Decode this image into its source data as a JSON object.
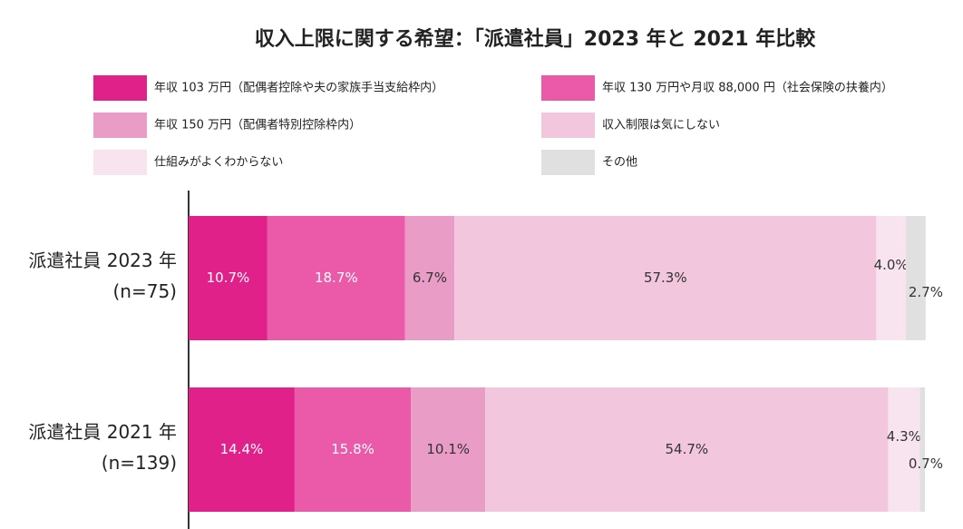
{
  "chart_data": {
    "type": "stacked-bar-horizontal",
    "title": "収入上限に関する希望：「派遣社員」2023 年と 2021 年比較",
    "categories": [
      "派遣社員 2023 年",
      "派遣社員 2021 年"
    ],
    "sample_sizes": [
      "(n=75)",
      "(n=139)"
    ],
    "xlim": [
      0,
      100
    ],
    "series": [
      {
        "name": "年収 103 万円（配偶者控除や夫の家族手当支給枠内）",
        "color": "#e0218a",
        "label_color": "#ffffff",
        "values": [
          10.7,
          14.4
        ],
        "value_labels": [
          "10.7%",
          "14.4%"
        ]
      },
      {
        "name": "年収 130 万円や月収 88,000 円（社会保険の扶養内）",
        "color": "#ea5aa8",
        "label_color": "#ffffff",
        "values": [
          18.7,
          15.8
        ],
        "value_labels": [
          "18.7%",
          "15.8%"
        ]
      },
      {
        "name": "年収 150 万円（配偶者特別控除枠内）",
        "color": "#e99cc6",
        "label_color": "#333333",
        "values": [
          6.7,
          10.1
        ],
        "value_labels": [
          "6.7%",
          "10.1%"
        ]
      },
      {
        "name": "収入制限は気にしない",
        "color": "#f2c6dd",
        "label_color": "#333333",
        "values": [
          57.3,
          54.7
        ],
        "value_labels": [
          "57.3%",
          "54.7%"
        ]
      },
      {
        "name": "仕組みがよくわからない",
        "color": "#f8e4ee",
        "label_color": "#333333",
        "values": [
          4.0,
          4.3
        ],
        "value_labels": [
          "4.0%",
          "4.3%"
        ]
      },
      {
        "name": "その他",
        "color": "#e0e0e0",
        "label_color": "#333333",
        "values": [
          2.7,
          0.7
        ],
        "value_labels": [
          "2.7%",
          "0.7%"
        ]
      }
    ]
  }
}
